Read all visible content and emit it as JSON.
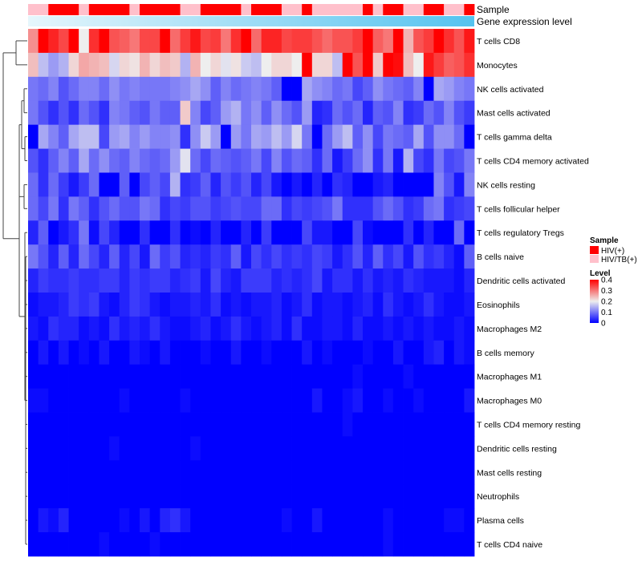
{
  "chart_data": {
    "type": "heatmap",
    "title": "",
    "annotation_labels": {
      "sample": "Sample",
      "gene": "Gene expression level"
    },
    "rows": [
      "T cells CD8",
      "Monocytes",
      "NK cells activated",
      "Mast cells activated",
      "T cells gamma delta",
      "T cells CD4 memory activated",
      "NK cells resting",
      "T cells follicular helper",
      "T cells regulatory  Tregs",
      "B cells naive",
      "Dendritic cells activated",
      "Eosinophils",
      "Macrophages M2",
      "B cells memory",
      "Macrophages M1",
      "Macrophages M0",
      "T cells CD4 memory resting",
      "Dendritic cells resting",
      "Mast cells resting",
      "Neutrophils",
      "Plasma cells",
      "T cells CD4 naive"
    ],
    "n_columns": 44,
    "sample_groups": [
      "HIV/TB(+)",
      "HIV/TB(+)",
      "HIV(+)",
      "HIV(+)",
      "HIV(+)",
      "HIV/TB(+)",
      "HIV(+)",
      "HIV(+)",
      "HIV(+)",
      "HIV(+)",
      "HIV/TB(+)",
      "HIV(+)",
      "HIV(+)",
      "HIV(+)",
      "HIV(+)",
      "HIV/TB(+)",
      "HIV/TB(+)",
      "HIV(+)",
      "HIV(+)",
      "HIV(+)",
      "HIV(+)",
      "HIV/TB(+)",
      "HIV(+)",
      "HIV(+)",
      "HIV(+)",
      "HIV/TB(+)",
      "HIV/TB(+)",
      "HIV(+)",
      "HIV/TB(+)",
      "HIV/TB(+)",
      "HIV/TB(+)",
      "HIV/TB(+)",
      "HIV/TB(+)",
      "HIV(+)",
      "HIV/TB(+)",
      "HIV(+)",
      "HIV(+)",
      "HIV/TB(+)",
      "HIV/TB(+)",
      "HIV(+)",
      "HIV(+)",
      "HIV/TB(+)",
      "HIV/TB(+)",
      "HIV(+)"
    ],
    "values": [
      [
        0.28,
        0.4,
        0.37,
        0.34,
        0.4,
        0.2,
        0.36,
        0.4,
        0.33,
        0.32,
        0.3,
        0.34,
        0.34,
        0.4,
        0.31,
        0.35,
        0.38,
        0.34,
        0.35,
        0.3,
        0.36,
        0.4,
        0.31,
        0.37,
        0.37,
        0.34,
        0.35,
        0.35,
        0.33,
        0.31,
        0.33,
        0.33,
        0.35,
        0.4,
        0.32,
        0.3,
        0.4,
        0.25,
        0.33,
        0.35,
        0.4,
        0.36,
        0.33,
        0.38
      ],
      [
        0.24,
        0.16,
        0.13,
        0.15,
        0.22,
        0.26,
        0.25,
        0.24,
        0.18,
        0.22,
        0.21,
        0.25,
        0.22,
        0.24,
        0.23,
        0.15,
        0.25,
        0.2,
        0.22,
        0.19,
        0.21,
        0.17,
        0.16,
        0.2,
        0.22,
        0.22,
        0.2,
        0.4,
        0.22,
        0.22,
        0.16,
        0.4,
        0.33,
        0.4,
        0.23,
        0.4,
        0.39,
        0.24,
        0.2,
        0.38,
        0.35,
        0.32,
        0.33,
        0.36
      ],
      [
        0.1,
        0.09,
        0.11,
        0.07,
        0.09,
        0.11,
        0.11,
        0.09,
        0.12,
        0.1,
        0.11,
        0.1,
        0.1,
        0.1,
        0.11,
        0.12,
        0.14,
        0.12,
        0.08,
        0.11,
        0.09,
        0.1,
        0.11,
        0.1,
        0.08,
        0.0,
        0.0,
        0.14,
        0.12,
        0.11,
        0.09,
        0.1,
        0.06,
        0.08,
        0.12,
        0.1,
        0.09,
        0.08,
        0.11,
        0.0,
        0.14,
        0.13,
        0.11,
        0.1
      ],
      [
        0.1,
        0.07,
        0.04,
        0.07,
        0.04,
        0.09,
        0.07,
        0.04,
        0.11,
        0.1,
        0.08,
        0.07,
        0.1,
        0.08,
        0.08,
        0.23,
        0.11,
        0.06,
        0.08,
        0.13,
        0.15,
        0.1,
        0.12,
        0.08,
        0.12,
        0.09,
        0.07,
        0.13,
        0.03,
        0.04,
        0.09,
        0.07,
        0.09,
        0.03,
        0.08,
        0.07,
        0.11,
        0.04,
        0.05,
        0.09,
        0.07,
        0.11,
        0.07,
        0.05
      ],
      [
        0.0,
        0.14,
        0.11,
        0.08,
        0.14,
        0.16,
        0.16,
        0.06,
        0.13,
        0.14,
        0.11,
        0.13,
        0.11,
        0.11,
        0.12,
        0.04,
        0.12,
        0.17,
        0.13,
        0.0,
        0.13,
        0.1,
        0.14,
        0.13,
        0.16,
        0.13,
        0.18,
        0.1,
        0.0,
        0.09,
        0.13,
        0.16,
        0.08,
        0.12,
        0.06,
        0.1,
        0.09,
        0.08,
        0.14,
        0.07,
        0.12,
        0.12,
        0.09,
        0.0
      ],
      [
        0.07,
        0.04,
        0.08,
        0.11,
        0.08,
        0.14,
        0.09,
        0.12,
        0.09,
        0.08,
        0.11,
        0.09,
        0.08,
        0.09,
        0.13,
        0.19,
        0.09,
        0.06,
        0.09,
        0.08,
        0.07,
        0.08,
        0.1,
        0.06,
        0.11,
        0.07,
        0.09,
        0.08,
        0.04,
        0.09,
        0.02,
        0.05,
        0.09,
        0.12,
        0.04,
        0.1,
        0.02,
        0.15,
        0.06,
        0.04,
        0.1,
        0.06,
        0.07,
        0.1
      ],
      [
        0.09,
        0.04,
        0.09,
        0.05,
        0.02,
        0.05,
        0.09,
        0.0,
        0.0,
        0.08,
        0.0,
        0.06,
        0.08,
        0.06,
        0.15,
        0.04,
        0.05,
        0.08,
        0.03,
        0.07,
        0.05,
        0.07,
        0.03,
        0.06,
        0.02,
        0.0,
        0.02,
        0.0,
        0.03,
        0.0,
        0.04,
        0.03,
        0.0,
        0.0,
        0.02,
        0.03,
        0.0,
        0.0,
        0.0,
        0.0,
        0.11,
        0.07,
        0.02,
        0.11
      ],
      [
        0.09,
        0.06,
        0.1,
        0.04,
        0.1,
        0.08,
        0.04,
        0.07,
        0.09,
        0.07,
        0.07,
        0.1,
        0.09,
        0.04,
        0.06,
        0.05,
        0.07,
        0.07,
        0.05,
        0.06,
        0.07,
        0.06,
        0.06,
        0.09,
        0.09,
        0.04,
        0.06,
        0.05,
        0.06,
        0.07,
        0.1,
        0.04,
        0.04,
        0.04,
        0.07,
        0.09,
        0.07,
        0.04,
        0.05,
        0.09,
        0.1,
        0.04,
        0.05,
        0.06
      ],
      [
        0.03,
        0.08,
        0.0,
        0.02,
        0.04,
        0.1,
        0.01,
        0.06,
        0.03,
        0.0,
        0.0,
        0.04,
        0.0,
        0.0,
        0.04,
        0.0,
        0.01,
        0.0,
        0.03,
        0.0,
        0.0,
        0.03,
        0.0,
        0.05,
        0.0,
        0.0,
        0.0,
        0.06,
        0.02,
        0.02,
        0.0,
        0.0,
        0.06,
        0.01,
        0.0,
        0.0,
        0.0,
        0.04,
        0.0,
        0.03,
        0.0,
        0.0,
        0.09,
        0.0
      ],
      [
        0.1,
        0.07,
        0.03,
        0.08,
        0.03,
        0.09,
        0.06,
        0.03,
        0.08,
        0.03,
        0.06,
        0.02,
        0.09,
        0.05,
        0.07,
        0.03,
        0.04,
        0.03,
        0.05,
        0.04,
        0.08,
        0.02,
        0.06,
        0.04,
        0.06,
        0.04,
        0.05,
        0.04,
        0.06,
        0.05,
        0.02,
        0.04,
        0.07,
        0.03,
        0.08,
        0.04,
        0.06,
        0.02,
        0.07,
        0.04,
        0.05,
        0.03,
        0.01,
        0.08
      ],
      [
        0.03,
        0.05,
        0.04,
        0.04,
        0.05,
        0.04,
        0.04,
        0.05,
        0.05,
        0.03,
        0.05,
        0.04,
        0.05,
        0.05,
        0.03,
        0.04,
        0.05,
        0.02,
        0.06,
        0.03,
        0.02,
        0.05,
        0.05,
        0.05,
        0.03,
        0.04,
        0.03,
        0.04,
        0.06,
        0.02,
        0.04,
        0.04,
        0.02,
        0.04,
        0.02,
        0.03,
        0.02,
        0.04,
        0.03,
        0.02,
        0.02,
        0.02,
        0.01,
        0.03
      ],
      [
        0.01,
        0.02,
        0.02,
        0.03,
        0.05,
        0.04,
        0.05,
        0.02,
        0.01,
        0.03,
        0.05,
        0.04,
        0.02,
        0.01,
        0.02,
        0.02,
        0.03,
        0.02,
        0.04,
        0.01,
        0.02,
        0.01,
        0.02,
        0.02,
        0.03,
        0.01,
        0.02,
        0.04,
        0.01,
        0.02,
        0.02,
        0.01,
        0.02,
        0.03,
        0.01,
        0.04,
        0.02,
        0.01,
        0.02,
        0.04,
        0.02,
        0.01,
        0.01,
        0.02
      ],
      [
        0.02,
        0.01,
        0.04,
        0.03,
        0.03,
        0.01,
        0.02,
        0.01,
        0.04,
        0.02,
        0.03,
        0.02,
        0.04,
        0.02,
        0.01,
        0.01,
        0.02,
        0.03,
        0.01,
        0.02,
        0.04,
        0.02,
        0.01,
        0.02,
        0.03,
        0.01,
        0.04,
        0.01,
        0.01,
        0.02,
        0.02,
        0.01,
        0.03,
        0.01,
        0.01,
        0.02,
        0.01,
        0.02,
        0.01,
        0.02,
        0.01,
        0.01,
        0.02,
        0.01
      ],
      [
        0.0,
        0.02,
        0.0,
        0.02,
        0.0,
        0.01,
        0.0,
        0.02,
        0.0,
        0.0,
        0.02,
        0.01,
        0.0,
        0.02,
        0.0,
        0.0,
        0.0,
        0.01,
        0.0,
        0.0,
        0.02,
        0.0,
        0.0,
        0.01,
        0.0,
        0.0,
        0.0,
        0.02,
        0.0,
        0.01,
        0.0,
        0.0,
        0.0,
        0.01,
        0.0,
        0.0,
        0.02,
        0.0,
        0.0,
        0.02,
        0.03,
        0.0,
        0.02,
        0.01
      ],
      [
        0.0,
        0.0,
        0.0,
        0.0,
        0.0,
        0.0,
        0.0,
        0.0,
        0.0,
        0.0,
        0.0,
        0.0,
        0.0,
        0.0,
        0.0,
        0.0,
        0.0,
        0.0,
        0.0,
        0.0,
        0.0,
        0.0,
        0.0,
        0.0,
        0.0,
        0.0,
        0.0,
        0.0,
        0.0,
        0.0,
        0.0,
        0.0,
        0.01,
        0.0,
        0.0,
        0.0,
        0.0,
        0.01,
        0.0,
        0.0,
        0.0,
        0.0,
        0.0,
        0.0
      ],
      [
        0.01,
        0.01,
        0.0,
        0.0,
        0.0,
        0.0,
        0.0,
        0.0,
        0.0,
        0.01,
        0.0,
        0.0,
        0.0,
        0.0,
        0.0,
        0.01,
        0.0,
        0.0,
        0.0,
        0.0,
        0.0,
        0.0,
        0.0,
        0.0,
        0.0,
        0.0,
        0.0,
        0.0,
        0.02,
        0.0,
        0.0,
        0.01,
        0.02,
        0.0,
        0.0,
        0.01,
        0.0,
        0.0,
        0.01,
        0.0,
        0.0,
        0.0,
        0.0,
        0.02
      ],
      [
        0.0,
        0.0,
        0.0,
        0.0,
        0.0,
        0.0,
        0.0,
        0.0,
        0.0,
        0.0,
        0.0,
        0.0,
        0.0,
        0.0,
        0.0,
        0.0,
        0.0,
        0.0,
        0.0,
        0.0,
        0.0,
        0.0,
        0.0,
        0.0,
        0.0,
        0.0,
        0.0,
        0.0,
        0.0,
        0.0,
        0.0,
        0.01,
        0.0,
        0.0,
        0.0,
        0.0,
        0.0,
        0.0,
        0.0,
        0.0,
        0.0,
        0.0,
        0.0,
        0.0
      ],
      [
        0.0,
        0.0,
        0.0,
        0.0,
        0.0,
        0.0,
        0.0,
        0.0,
        0.01,
        0.0,
        0.0,
        0.0,
        0.0,
        0.0,
        0.0,
        0.0,
        0.01,
        0.0,
        0.0,
        0.0,
        0.0,
        0.0,
        0.0,
        0.0,
        0.0,
        0.0,
        0.0,
        0.0,
        0.0,
        0.0,
        0.0,
        0.0,
        0.0,
        0.0,
        0.0,
        0.0,
        0.0,
        0.0,
        0.0,
        0.0,
        0.0,
        0.0,
        0.0,
        0.0
      ],
      [
        0.0,
        0.0,
        0.0,
        0.0,
        0.0,
        0.0,
        0.0,
        0.0,
        0.0,
        0.0,
        0.0,
        0.0,
        0.0,
        0.0,
        0.0,
        0.0,
        0.0,
        0.0,
        0.0,
        0.0,
        0.0,
        0.0,
        0.0,
        0.0,
        0.0,
        0.0,
        0.0,
        0.0,
        0.0,
        0.0,
        0.0,
        0.0,
        0.0,
        0.0,
        0.0,
        0.0,
        0.0,
        0.0,
        0.0,
        0.0,
        0.0,
        0.0,
        0.0,
        0.0
      ],
      [
        0.0,
        0.0,
        0.0,
        0.0,
        0.0,
        0.0,
        0.0,
        0.0,
        0.0,
        0.0,
        0.0,
        0.0,
        0.0,
        0.0,
        0.0,
        0.0,
        0.0,
        0.0,
        0.0,
        0.0,
        0.0,
        0.0,
        0.0,
        0.0,
        0.0,
        0.0,
        0.0,
        0.0,
        0.0,
        0.0,
        0.0,
        0.0,
        0.0,
        0.0,
        0.0,
        0.0,
        0.0,
        0.0,
        0.0,
        0.0,
        0.0,
        0.0,
        0.0,
        0.0
      ],
      [
        0.0,
        0.02,
        0.01,
        0.03,
        0.0,
        0.0,
        0.0,
        0.0,
        0.0,
        0.01,
        0.0,
        0.02,
        0.0,
        0.03,
        0.04,
        0.02,
        0.0,
        0.0,
        0.0,
        0.0,
        0.0,
        0.0,
        0.0,
        0.0,
        0.0,
        0.01,
        0.0,
        0.0,
        0.02,
        0.0,
        0.0,
        0.0,
        0.0,
        0.0,
        0.0,
        0.01,
        0.0,
        0.0,
        0.0,
        0.0,
        0.0,
        0.01,
        0.01,
        0.0
      ],
      [
        0.0,
        0.0,
        0.0,
        0.0,
        0.0,
        0.0,
        0.0,
        0.01,
        0.0,
        0.0,
        0.0,
        0.0,
        0.01,
        0.0,
        0.0,
        0.0,
        0.0,
        0.0,
        0.0,
        0.0,
        0.0,
        0.0,
        0.0,
        0.0,
        0.0,
        0.0,
        0.0,
        0.0,
        0.0,
        0.0,
        0.0,
        0.0,
        0.0,
        0.0,
        0.0,
        0.01,
        0.0,
        0.0,
        0.0,
        0.0,
        0.0,
        0.0,
        0.0,
        0.0
      ]
    ],
    "value_range": [
      0,
      0.4
    ],
    "legend": {
      "sample_title": "Sample",
      "sample_entries": [
        {
          "label": "HIV(+)",
          "color": "#ff0000"
        },
        {
          "label": "HIV/TB(+)",
          "color": "#ffc0cb"
        }
      ],
      "level_title": "Level",
      "level_ticks": [
        {
          "label": "0.4",
          "value": 0.4
        },
        {
          "label": "0.3",
          "value": 0.3
        },
        {
          "label": "0.2",
          "value": 0.2
        },
        {
          "label": "0.1",
          "value": 0.1
        },
        {
          "label": "0",
          "value": 0
        }
      ],
      "placement": "right"
    },
    "colors": {
      "low": "#0000ff",
      "mid": "#eeeeee",
      "high": "#ff0000",
      "gene_start": "#e6f6fc",
      "gene_end": "#55c3ef"
    }
  }
}
